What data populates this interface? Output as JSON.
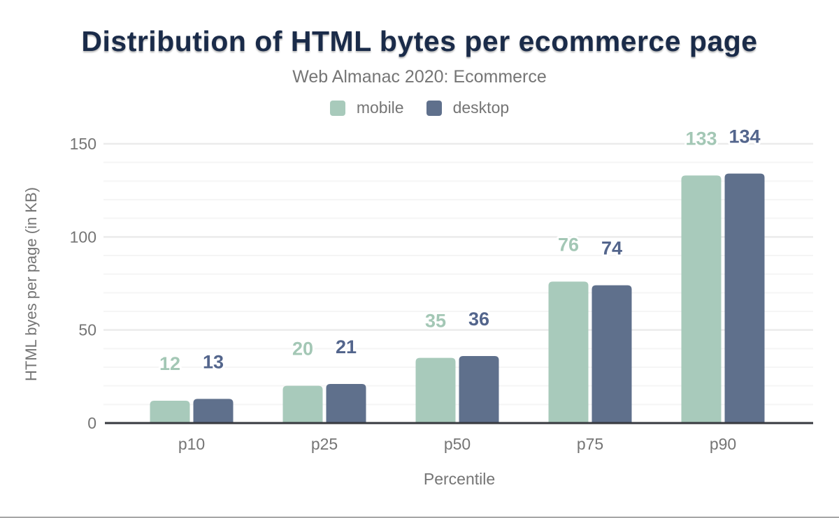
{
  "header": {
    "title": "Distribution of HTML bytes per ecommerce page",
    "subtitle": "Web Almanac 2020: Ecommerce"
  },
  "chart_data": {
    "type": "bar",
    "title": "Distribution of HTML bytes per ecommerce page",
    "subtitle": "Web Almanac 2020: Ecommerce",
    "categories": [
      "p10",
      "p25",
      "p50",
      "p75",
      "p90"
    ],
    "series": [
      {
        "name": "mobile",
        "color": "#a8cabb",
        "label_color": "#a3c7b5",
        "values": [
          12,
          20,
          35,
          76,
          133
        ]
      },
      {
        "name": "desktop",
        "color": "#5f708c",
        "label_color": "#53658c",
        "values": [
          13,
          21,
          36,
          74,
          134
        ]
      }
    ],
    "xlabel": "Percentile",
    "ylabel": "HTML byes per page (in KB)",
    "ylim": [
      0,
      150
    ],
    "yticks": [
      0,
      50,
      100,
      150
    ],
    "grid": {
      "minor_step": 10,
      "major_step": 50,
      "on": true
    },
    "legend_position": "top",
    "colors": {
      "title_text": "#1a2b49",
      "muted_text": "#757575",
      "axis_line": "#37393f",
      "grid_minor": "#f5f5f5",
      "grid_major": "#ebebeb",
      "background": "#ffffff"
    }
  }
}
